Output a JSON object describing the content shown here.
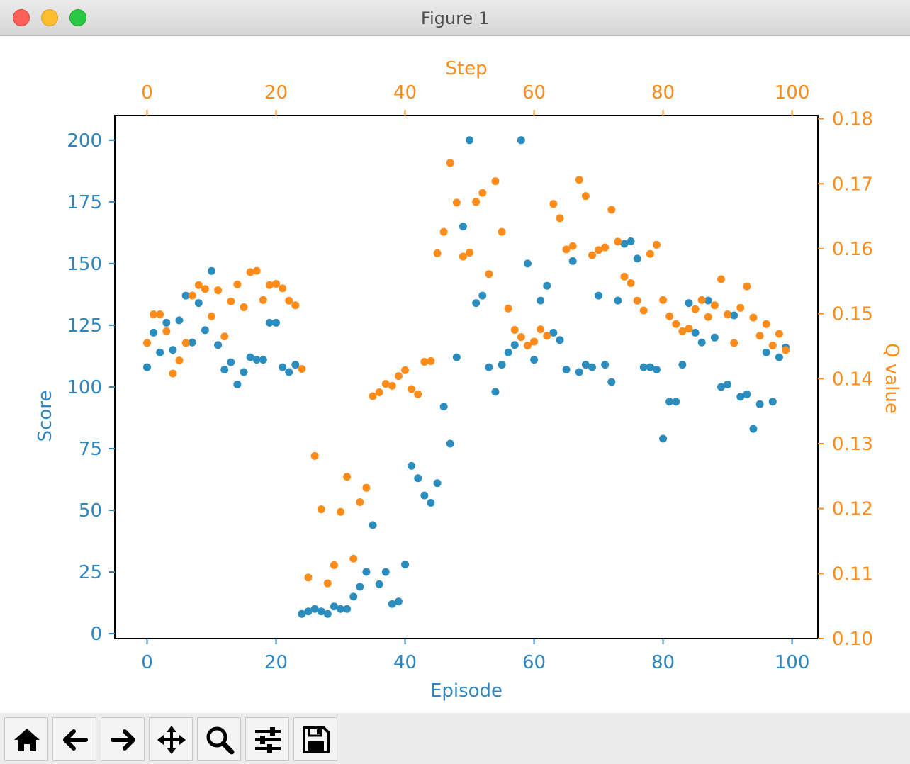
{
  "window": {
    "title": "Figure 1"
  },
  "toolbar": {
    "buttons": [
      {
        "name": "home-button",
        "icon": "home-icon"
      },
      {
        "name": "back-button",
        "icon": "arrow-left-icon"
      },
      {
        "name": "forward-button",
        "icon": "arrow-right-icon"
      },
      {
        "name": "pan-button",
        "icon": "move-icon"
      },
      {
        "name": "zoom-button",
        "icon": "magnifier-icon"
      },
      {
        "name": "configure-subplots-button",
        "icon": "sliders-icon"
      },
      {
        "name": "save-button",
        "icon": "floppy-disk-icon"
      }
    ]
  },
  "colors": {
    "score": "#2b8cbe",
    "q": "#ff8c1a",
    "axis_score": "#2e86c1",
    "axis_q": "#ff8c1a"
  },
  "chart_data": {
    "type": "scatter",
    "title": "",
    "xlabel": "Episode",
    "ylabel": "Score",
    "top_xlabel": "Step",
    "right_ylabel": "Q value",
    "xlim": [
      -5,
      104
    ],
    "ylim": [
      -2,
      210
    ],
    "top_xlim": [
      -5,
      104
    ],
    "right_ylim": [
      0.1,
      0.1805
    ],
    "x_ticks": [
      "0",
      "20",
      "40",
      "60",
      "80",
      "100"
    ],
    "top_x_ticks": [
      "0",
      "20",
      "40",
      "60",
      "80",
      "100"
    ],
    "y_ticks": [
      "0",
      "25",
      "50",
      "75",
      "100",
      "125",
      "150",
      "175",
      "200"
    ],
    "right_y_ticks": [
      "0.10",
      "0.11",
      "0.12",
      "0.13",
      "0.14",
      "0.15",
      "0.16",
      "0.17",
      "0.18"
    ],
    "grid": false,
    "series": [
      {
        "axis": "bottom-left",
        "x": [
          0,
          1,
          2,
          3,
          4,
          5,
          6,
          7,
          8,
          9,
          10,
          11,
          12,
          13,
          14,
          15,
          16,
          17,
          18,
          19,
          20,
          21,
          22,
          23,
          24,
          25,
          26,
          27,
          28,
          29,
          30,
          31,
          32,
          33,
          34,
          35,
          36,
          37,
          38,
          39,
          40,
          41,
          42,
          43,
          44,
          45,
          46,
          47,
          48,
          49,
          50,
          51,
          52,
          53,
          54,
          55,
          56,
          57,
          58,
          59,
          60,
          61,
          62,
          63,
          64,
          65,
          66,
          67,
          68,
          69,
          70,
          71,
          72,
          73,
          74,
          75,
          76,
          77,
          78,
          79,
          80,
          81,
          82,
          83,
          84,
          85,
          86,
          87,
          88,
          89,
          90,
          91,
          92,
          93,
          94,
          95,
          96,
          97,
          98,
          99
        ],
        "y": [
          108,
          122,
          114,
          126,
          115,
          127,
          137,
          118,
          134,
          123,
          147,
          117,
          107,
          110,
          101,
          106,
          112,
          111,
          111,
          126,
          126,
          108,
          106,
          109,
          8,
          9,
          10,
          9,
          8,
          11,
          10,
          10,
          15,
          19,
          25,
          44,
          20,
          25,
          12,
          13,
          28,
          68,
          63,
          56,
          53,
          61,
          92,
          77,
          112,
          165,
          200,
          134,
          137,
          108,
          98,
          109,
          114,
          117,
          200,
          150,
          111,
          135,
          141,
          122,
          119,
          107,
          151,
          106,
          109,
          108,
          137,
          109,
          102,
          135,
          158,
          159,
          152,
          108,
          108,
          107,
          79,
          94,
          94,
          109,
          134,
          122,
          118,
          135,
          120,
          100,
          101,
          129,
          96,
          97,
          83,
          93,
          114,
          94,
          112,
          116
        ]
      },
      {
        "axis": "top-right",
        "x": [
          0,
          1,
          2,
          3,
          4,
          5,
          6,
          7,
          8,
          9,
          10,
          11,
          12,
          13,
          14,
          15,
          16,
          17,
          18,
          19,
          20,
          21,
          22,
          23,
          24,
          25,
          26,
          27,
          28,
          29,
          30,
          31,
          32,
          33,
          34,
          35,
          36,
          37,
          38,
          39,
          40,
          41,
          42,
          43,
          44,
          45,
          46,
          47,
          48,
          49,
          50,
          51,
          52,
          53,
          54,
          55,
          56,
          57,
          58,
          59,
          60,
          61,
          62,
          63,
          64,
          65,
          66,
          67,
          68,
          69,
          70,
          71,
          72,
          73,
          74,
          75,
          76,
          77,
          78,
          79,
          80,
          81,
          82,
          83,
          84,
          85,
          86,
          87,
          88,
          89,
          90,
          91,
          92,
          93,
          94,
          95,
          96,
          97,
          98,
          99
        ],
        "y": [
          0.1455,
          0.1499,
          0.1499,
          0.1473,
          0.1408,
          0.1428,
          0.1455,
          0.1528,
          0.1544,
          0.1538,
          0.1496,
          0.1536,
          0.1465,
          0.1519,
          0.1545,
          0.151,
          0.1564,
          0.1566,
          0.1521,
          0.1544,
          0.1546,
          0.1539,
          0.152,
          0.1513,
          0.1415,
          0.1094,
          0.1281,
          0.1199,
          0.1085,
          0.1113,
          0.1195,
          0.1249,
          0.1123,
          0.121,
          0.1232,
          0.1373,
          0.1379,
          0.1392,
          0.1389,
          0.1404,
          0.1413,
          0.1384,
          0.1376,
          0.1426,
          0.1427,
          0.1593,
          0.1626,
          0.1732,
          0.1671,
          0.1588,
          0.1594,
          0.1672,
          0.1686,
          0.1561,
          0.1704,
          0.1626,
          0.1508,
          0.1475,
          0.1464,
          0.1451,
          0.1457,
          0.1476,
          0.1466,
          0.1669,
          0.1647,
          0.1599,
          0.1604,
          0.1706,
          0.1681,
          0.159,
          0.1598,
          0.1602,
          0.166,
          0.1611,
          0.1557,
          0.1547,
          0.152,
          0.1505,
          0.1592,
          0.1606,
          0.1521,
          0.1496,
          0.1484,
          0.1473,
          0.1477,
          0.1507,
          0.1521,
          0.1495,
          0.1513,
          0.1553,
          0.1499,
          0.1455,
          0.1509,
          0.1542,
          0.1494,
          0.1466,
          0.1484,
          0.1451,
          0.1469,
          0.1444
        ]
      }
    ]
  }
}
